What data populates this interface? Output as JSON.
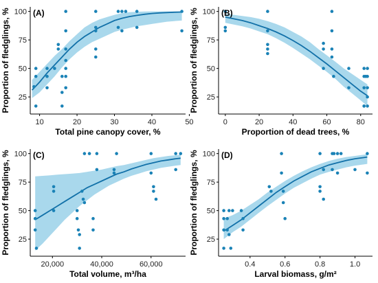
{
  "style": {
    "ribbon_color": "#a9d8ec",
    "line_color": "#1170a8",
    "point_color": "#1a82b6"
  },
  "chart_data": [
    {
      "type": "scatter",
      "panel_label": "(A)",
      "xlabel": "Total pine canopy cover, %",
      "ylabel": "Proportion of fledglings, %",
      "xlim": [
        7.5,
        49
      ],
      "ylim": [
        10,
        104
      ],
      "xticks": [
        10,
        20,
        30,
        40,
        50
      ],
      "xtick_labels": [
        "10",
        "20",
        "30",
        "40",
        "50"
      ],
      "yticks": [
        25,
        50,
        75,
        100
      ],
      "ytick_labels": [
        "25",
        "50",
        "75",
        "100"
      ],
      "points": {
        "x": [
          8.5,
          9,
          9,
          9,
          12,
          12,
          12,
          14,
          15,
          15,
          16,
          16,
          16,
          17,
          17,
          17,
          17,
          17,
          17,
          17,
          25,
          25,
          25,
          25,
          25,
          31,
          31,
          32,
          32,
          33,
          36,
          36,
          48,
          48
        ],
        "y": [
          34,
          17,
          43,
          50,
          33,
          43,
          50,
          50,
          67,
          71,
          17,
          29,
          43,
          43,
          57,
          67,
          83,
          100,
          33,
          50,
          60,
          67,
          86,
          100,
          83,
          100,
          86,
          83,
          100,
          100,
          86,
          100,
          100,
          83
        ]
      },
      "fit": {
        "x": [
          8,
          10,
          12,
          14,
          16,
          18,
          20,
          22,
          24,
          26,
          28,
          30,
          32,
          34,
          36,
          38,
          40,
          42,
          44,
          46,
          48
        ],
        "y": [
          31,
          38,
          46,
          53,
          60,
          67,
          73,
          78,
          82,
          86,
          89,
          92,
          94,
          95.5,
          96.5,
          97.5,
          98.2,
          98.7,
          99,
          99.3,
          99.5
        ],
        "lower": [
          24,
          29,
          36,
          43,
          51,
          58,
          64,
          69,
          73,
          76,
          79,
          82,
          84,
          85.5,
          87,
          88,
          89,
          90,
          91,
          91.5,
          92
        ],
        "upper": [
          40,
          47,
          54,
          61,
          67,
          74,
          80,
          86,
          90,
          93,
          95,
          97,
          98.5,
          99.3,
          99.7,
          99.9,
          100,
          100,
          100,
          100,
          100
        ]
      }
    },
    {
      "type": "scatter",
      "panel_label": "(B)",
      "xlabel": "Proportion of dead trees, %",
      "ylabel": "Proportion of fledglings, %",
      "xlim": [
        -4,
        87
      ],
      "ylim": [
        10,
        104
      ],
      "xticks": [
        0,
        20,
        40,
        60,
        80
      ],
      "xtick_labels": [
        "0",
        "20",
        "40",
        "60",
        "80"
      ],
      "yticks": [
        25,
        50,
        75,
        100
      ],
      "ytick_labels": [
        "25",
        "50",
        "75",
        "100"
      ],
      "points": {
        "x": [
          0,
          0,
          0,
          25,
          25,
          25,
          25,
          25,
          58,
          58,
          58,
          63,
          63,
          63,
          63,
          64,
          73,
          73,
          82,
          82,
          82,
          82,
          82,
          83,
          84,
          84,
          84,
          84,
          84
        ],
        "y": [
          100,
          86,
          83,
          100,
          83,
          71,
          67,
          63,
          72,
          67,
          50,
          100,
          83,
          67,
          60,
          43,
          50,
          33,
          50,
          43,
          33,
          17,
          17,
          43,
          50,
          43,
          33,
          25,
          17
        ]
      },
      "fit": {
        "x": [
          0,
          5,
          10,
          15,
          20,
          25,
          30,
          35,
          40,
          45,
          50,
          55,
          60,
          65,
          70,
          75,
          80,
          84
        ],
        "y": [
          95,
          93.5,
          92,
          90,
          87.5,
          85,
          82,
          78.5,
          74.5,
          70,
          65,
          59.5,
          54,
          48,
          42,
          36,
          30,
          26
        ],
        "lower": [
          90,
          88.5,
          87,
          85,
          82.5,
          80,
          76.5,
          72.5,
          68,
          63,
          58,
          52.5,
          47,
          41,
          34,
          28,
          22,
          17
        ],
        "upper": [
          98,
          97,
          96,
          95,
          93.5,
          91.5,
          89,
          86,
          82,
          78,
          73,
          67,
          61.5,
          56,
          50,
          45,
          40,
          36
        ]
      }
    },
    {
      "type": "scatter",
      "panel_label": "(C)",
      "xlabel": "Total volume, m³/ha",
      "ylabel": "Proportion of fledglings, %",
      "xlim": [
        11000,
        74000
      ],
      "ylim": [
        10,
        104
      ],
      "xticks": [
        20000,
        40000,
        60000
      ],
      "xtick_labels": [
        "20,000",
        "40,000",
        "60,000"
      ],
      "yticks": [
        25,
        50,
        75,
        100
      ],
      "ytick_labels": [
        "25",
        "50",
        "75",
        "100"
      ],
      "points": {
        "x": [
          13000,
          13000,
          13000,
          13500,
          20500,
          20500,
          20500,
          30000,
          30000,
          30500,
          31000,
          31000,
          32000,
          32500,
          33000,
          33000,
          35000,
          36500,
          36500,
          38000,
          38000,
          45000,
          45000,
          46000,
          60000,
          60000,
          61000,
          61000,
          62000,
          70000,
          70000,
          72000
        ],
        "y": [
          50,
          43,
          33,
          17,
          71,
          67,
          50,
          50,
          43,
          33,
          29,
          17,
          67,
          60,
          100,
          57,
          100,
          43,
          33,
          86,
          100,
          86,
          83,
          100,
          100,
          83,
          71,
          67,
          60,
          100,
          86,
          100
        ]
      },
      "fit": {
        "x": [
          13000,
          16000,
          19000,
          22000,
          25000,
          28000,
          31000,
          34000,
          37000,
          40000,
          43000,
          46000,
          49000,
          52000,
          55000,
          58000,
          61000,
          64000,
          67000,
          70000,
          72000
        ],
        "y": [
          42,
          46,
          50,
          54,
          58,
          62,
          66,
          70,
          73,
          76,
          79,
          82,
          84,
          86.5,
          88.5,
          90.5,
          92,
          93.5,
          94.5,
          95.5,
          96
        ],
        "lower": [
          15,
          21,
          28,
          35,
          42,
          48,
          54,
          59,
          64,
          68,
          72,
          75,
          78,
          80.5,
          82.5,
          84.5,
          86,
          87.5,
          88.5,
          89.5,
          90
        ],
        "upper": [
          80,
          80.5,
          81,
          81.5,
          82,
          82.5,
          83,
          84,
          85,
          86,
          87.5,
          89,
          90,
          91.5,
          93,
          94.5,
          96,
          97,
          98,
          98.5,
          99
        ]
      }
    },
    {
      "type": "scatter",
      "panel_label": "(D)",
      "xlabel": "Larval biomass, g/m²",
      "ylabel": "Proportion of fledglings, %",
      "xlim": [
        0.22,
        1.1
      ],
      "ylim": [
        10,
        104
      ],
      "xticks": [
        0.4,
        0.6,
        0.8,
        1.0
      ],
      "xtick_labels": [
        "0.4",
        "0.6",
        "0.8",
        "1.0"
      ],
      "yticks": [
        25,
        50,
        75,
        100
      ],
      "ytick_labels": [
        "25",
        "50",
        "75",
        "100"
      ],
      "points": {
        "x": [
          0.25,
          0.25,
          0.25,
          0.25,
          0.27,
          0.27,
          0.28,
          0.28,
          0.29,
          0.3,
          0.35,
          0.36,
          0.36,
          0.51,
          0.52,
          0.58,
          0.58,
          0.59,
          0.59,
          0.6,
          0.8,
          0.8,
          0.8,
          0.82,
          0.82,
          0.87,
          0.87,
          0.88,
          0.9,
          0.9,
          0.92,
          1.0,
          1.07,
          1.07
        ],
        "y": [
          50,
          43,
          33,
          17,
          43,
          33,
          50,
          29,
          17,
          50,
          50,
          43,
          33,
          71,
          67,
          100,
          83,
          67,
          57,
          43,
          100,
          71,
          67,
          60,
          86,
          100,
          86,
          100,
          100,
          83,
          100,
          86,
          100,
          83
        ]
      },
      "fit": {
        "x": [
          0.25,
          0.3,
          0.35,
          0.4,
          0.45,
          0.5,
          0.55,
          0.6,
          0.65,
          0.7,
          0.75,
          0.8,
          0.85,
          0.9,
          0.95,
          1.0,
          1.05,
          1.07
        ],
        "y": [
          32,
          37,
          42,
          48,
          54,
          60,
          66,
          71,
          76,
          80,
          84,
          87,
          90,
          92,
          94,
          95.5,
          96.5,
          97
        ],
        "lower": [
          25,
          31,
          36,
          42,
          48,
          54,
          59.5,
          65,
          70,
          74,
          78,
          81.5,
          84,
          86,
          88,
          89.5,
          90.5,
          91
        ],
        "upper": [
          43,
          46,
          50,
          55,
          60,
          66,
          71,
          76,
          80.5,
          84.5,
          88,
          91,
          93.5,
          95.5,
          97,
          98,
          99,
          99.5
        ]
      }
    }
  ]
}
